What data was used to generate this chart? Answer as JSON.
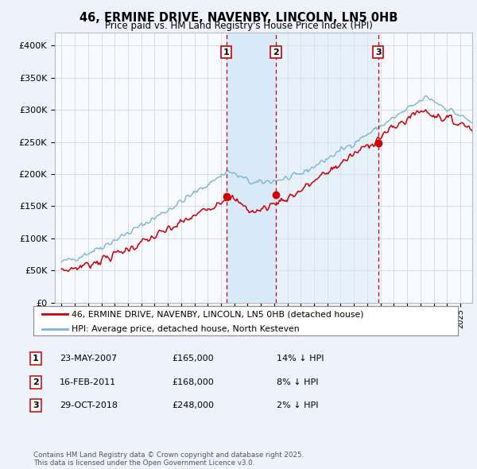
{
  "title": "46, ERMINE DRIVE, NAVENBY, LINCOLN, LN5 0HB",
  "subtitle": "Price paid vs. HM Land Registry's House Price Index (HPI)",
  "ylim": [
    0,
    420000
  ],
  "yticks": [
    0,
    50000,
    100000,
    150000,
    200000,
    250000,
    300000,
    350000,
    400000
  ],
  "ytick_labels": [
    "£0",
    "£50K",
    "£100K",
    "£150K",
    "£200K",
    "£250K",
    "£300K",
    "£350K",
    "£400K"
  ],
  "hpi_color": "#7ab4d8",
  "sale_color": "#cc0000",
  "vline_color": "#cc0000",
  "shade_color": "#d8eaf7",
  "sales": [
    {
      "date_num": 2007.39,
      "price": 165000,
      "label": "1"
    },
    {
      "date_num": 2011.12,
      "price": 168000,
      "label": "2"
    },
    {
      "date_num": 2018.83,
      "price": 248000,
      "label": "3"
    }
  ],
  "legend_sale_label": "46, ERMINE DRIVE, NAVENBY, LINCOLN, LN5 0HB (detached house)",
  "legend_hpi_label": "HPI: Average price, detached house, North Kesteven",
  "table_rows": [
    {
      "num": "1",
      "date": "23-MAY-2007",
      "price": "£165,000",
      "pct": "14% ↓ HPI"
    },
    {
      "num": "2",
      "date": "16-FEB-2011",
      "price": "£168,000",
      "pct": "8% ↓ HPI"
    },
    {
      "num": "3",
      "date": "29-OCT-2018",
      "price": "£248,000",
      "pct": "2% ↓ HPI"
    }
  ],
  "footnote": "Contains HM Land Registry data © Crown copyright and database right 2025.\nThis data is licensed under the Open Government Licence v3.0.",
  "background_color": "#eef2fa",
  "plot_bg_color": "#f8faff"
}
